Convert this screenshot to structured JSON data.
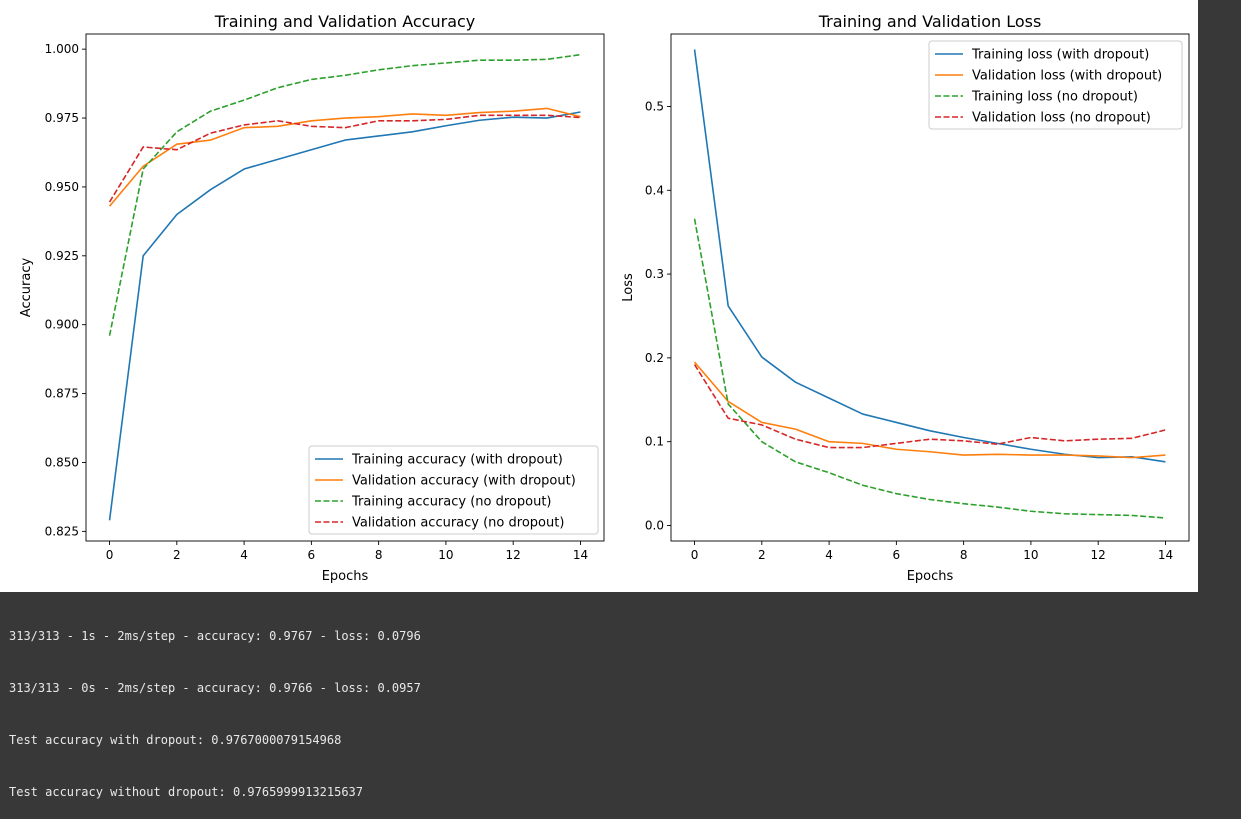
{
  "chart_data": [
    {
      "type": "line",
      "title": "Training and Validation Accuracy",
      "xlabel": "Epochs",
      "ylabel": "Accuracy",
      "xlim": [
        -0.7,
        14.7
      ],
      "ylim": [
        0.8215,
        1.0055
      ],
      "xticks": [
        0,
        2,
        4,
        6,
        8,
        10,
        12,
        14
      ],
      "yticks": [
        "0.825",
        "0.850",
        "0.875",
        "0.900",
        "0.925",
        "0.950",
        "0.975",
        "1.000"
      ],
      "legend_position": "lower-right",
      "grid": false,
      "x": [
        0,
        1,
        2,
        3,
        4,
        5,
        6,
        7,
        8,
        9,
        10,
        11,
        12,
        13,
        14
      ],
      "series": [
        {
          "name": "Training accuracy (with dropout)",
          "color": "#1f77b4",
          "dash": "solid",
          "values": [
            0.829,
            0.925,
            0.94,
            0.949,
            0.9565,
            0.96,
            0.9635,
            0.967,
            0.9685,
            0.97,
            0.9722,
            0.9742,
            0.9753,
            0.975,
            0.9772
          ]
        },
        {
          "name": "Validation accuracy (with dropout)",
          "color": "#ff7f0e",
          "dash": "solid",
          "values": [
            0.943,
            0.9575,
            0.9655,
            0.967,
            0.9715,
            0.972,
            0.974,
            0.975,
            0.9755,
            0.9765,
            0.976,
            0.977,
            0.9775,
            0.9785,
            0.9755
          ]
        },
        {
          "name": "Training accuracy (no dropout)",
          "color": "#2ca02c",
          "dash": "dashed",
          "values": [
            0.896,
            0.9565,
            0.97,
            0.9775,
            0.9815,
            0.986,
            0.989,
            0.9905,
            0.9925,
            0.994,
            0.995,
            0.996,
            0.996,
            0.9963,
            0.998
          ]
        },
        {
          "name": "Validation accuracy (no dropout)",
          "color": "#d62728",
          "dash": "dashed",
          "values": [
            0.9445,
            0.9645,
            0.9635,
            0.9695,
            0.9725,
            0.974,
            0.972,
            0.9715,
            0.974,
            0.974,
            0.9745,
            0.976,
            0.976,
            0.976,
            0.9752
          ]
        }
      ]
    },
    {
      "type": "line",
      "title": "Training and Validation Loss",
      "xlabel": "Epochs",
      "ylabel": "Loss",
      "xlim": [
        -0.7,
        14.7
      ],
      "ylim": [
        -0.0185,
        0.5865
      ],
      "xticks": [
        0,
        2,
        4,
        6,
        8,
        10,
        12,
        14
      ],
      "yticks": [
        "0.0",
        "0.1",
        "0.2",
        "0.3",
        "0.4",
        "0.5"
      ],
      "legend_position": "upper-right",
      "grid": false,
      "x": [
        0,
        1,
        2,
        3,
        4,
        5,
        6,
        7,
        8,
        9,
        10,
        11,
        12,
        13,
        14
      ],
      "series": [
        {
          "name": "Training loss (with dropout)",
          "color": "#1f77b4",
          "dash": "solid",
          "values": [
            0.568,
            0.262,
            0.201,
            0.171,
            0.152,
            0.133,
            0.123,
            0.113,
            0.105,
            0.098,
            0.091,
            0.085,
            0.081,
            0.082,
            0.076
          ]
        },
        {
          "name": "Validation loss (with dropout)",
          "color": "#ff7f0e",
          "dash": "solid",
          "values": [
            0.195,
            0.148,
            0.123,
            0.115,
            0.1,
            0.098,
            0.091,
            0.088,
            0.084,
            0.085,
            0.084,
            0.084,
            0.083,
            0.081,
            0.084
          ]
        },
        {
          "name": "Training loss (no dropout)",
          "color": "#2ca02c",
          "dash": "dashed",
          "values": [
            0.366,
            0.145,
            0.1,
            0.076,
            0.063,
            0.048,
            0.038,
            0.031,
            0.026,
            0.022,
            0.017,
            0.014,
            0.013,
            0.012,
            0.009
          ]
        },
        {
          "name": "Validation loss (no dropout)",
          "color": "#d62728",
          "dash": "dashed",
          "values": [
            0.192,
            0.128,
            0.12,
            0.103,
            0.093,
            0.093,
            0.098,
            0.103,
            0.101,
            0.097,
            0.105,
            0.101,
            0.103,
            0.104,
            0.114
          ]
        }
      ]
    }
  ],
  "console": [
    "313/313 - 1s - 2ms/step - accuracy: 0.9767 - loss: 0.0796",
    "313/313 - 0s - 2ms/step - accuracy: 0.9766 - loss: 0.0957",
    "Test accuracy with dropout: 0.9767000079154968",
    "Test accuracy without dropout: 0.9765999913215637"
  ]
}
